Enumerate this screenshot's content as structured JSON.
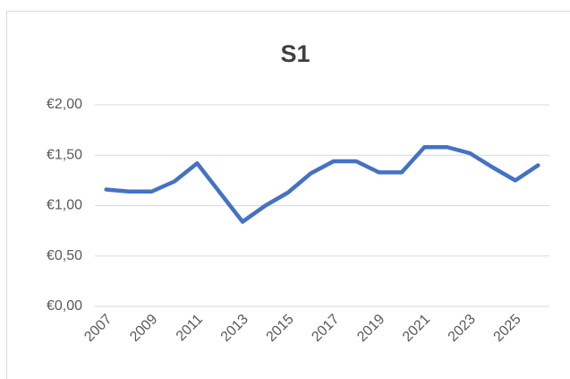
{
  "chart_data": {
    "type": "line",
    "title": "S1",
    "categories": [
      "2007",
      null,
      "2009",
      null,
      "2011",
      null,
      "2013",
      null,
      "2015",
      null,
      "2017",
      null,
      "2019",
      null,
      "2021",
      null,
      "2023",
      null,
      "2025",
      null
    ],
    "series": [
      {
        "name": "S1",
        "color": "#4472c4",
        "values": [
          1.16,
          1.14,
          1.14,
          1.24,
          1.42,
          1.13,
          0.84,
          1.0,
          1.13,
          1.32,
          1.44,
          1.44,
          1.33,
          1.33,
          1.58,
          1.58,
          1.52,
          1.38,
          1.25,
          1.4
        ]
      }
    ],
    "ylim": [
      0,
      2
    ],
    "yticks": [
      {
        "value": 0,
        "label": "€0,00"
      },
      {
        "value": 0.5,
        "label": "€0,50"
      },
      {
        "value": 1,
        "label": "€1,00"
      },
      {
        "value": 1.5,
        "label": "€1,50"
      },
      {
        "value": 2,
        "label": "€2,00"
      }
    ],
    "grid": true
  }
}
